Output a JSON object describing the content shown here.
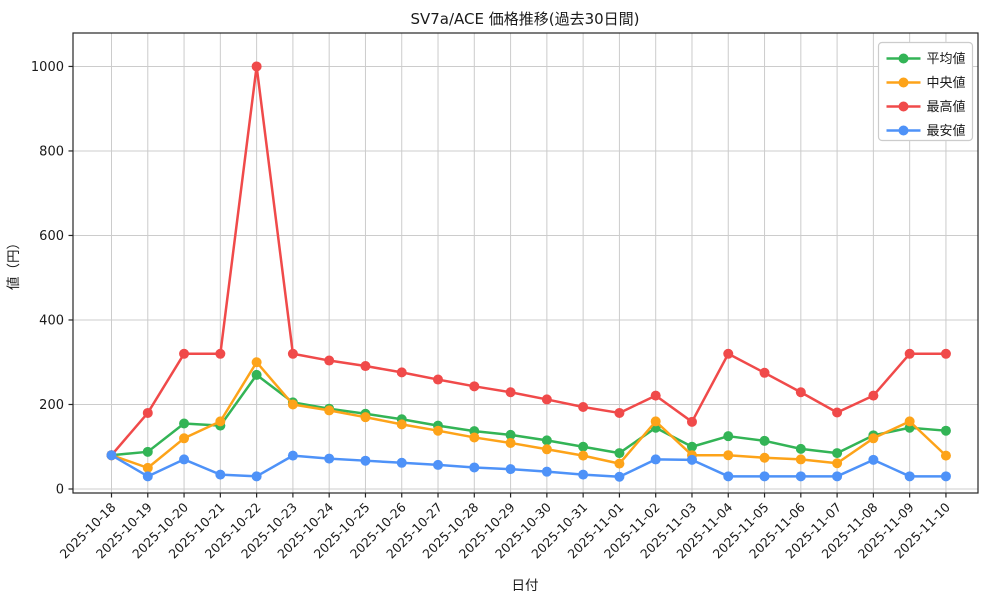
{
  "chart_data": {
    "type": "line",
    "title": "SV7a/ACE 価格推移(過去30日間)",
    "xlabel": "日付",
    "ylabel": "値（円）",
    "grid": true,
    "legend_position": "top-right",
    "ylim": [
      -10,
      1080
    ],
    "yticks": [
      0,
      200,
      400,
      600,
      800,
      1000
    ],
    "x": [
      "2025-10-18",
      "2025-10-19",
      "2025-10-20",
      "2025-10-21",
      "2025-10-22",
      "2025-10-23",
      "2025-10-24",
      "2025-10-25",
      "2025-10-26",
      "2025-10-27",
      "2025-10-28",
      "2025-10-29",
      "2025-10-30",
      "2025-10-31",
      "2025-11-01",
      "2025-11-02",
      "2025-11-03",
      "2025-11-04",
      "2025-11-05",
      "2025-11-06",
      "2025-11-07",
      "2025-11-08",
      "2025-11-09",
      "2025-11-10"
    ],
    "series": [
      {
        "name": "平均値",
        "color": "#33b456",
        "values": [
          80,
          88,
          155,
          150,
          270,
          205,
          190,
          178,
          165,
          150,
          137,
          128,
          115,
          100,
          85,
          145,
          100,
          125,
          114,
          95,
          85,
          127,
          145,
          138
        ]
      },
      {
        "name": "中央値",
        "color": "#fda319",
        "values": [
          80,
          50,
          120,
          160,
          300,
          200,
          186,
          170,
          153,
          138,
          122,
          109,
          94,
          79,
          60,
          160,
          80,
          80,
          74,
          70,
          61,
          120,
          160,
          79
        ]
      },
      {
        "name": "最高値",
        "color": "#f04a4a",
        "values": [
          80,
          180,
          320,
          320,
          1000,
          320,
          304,
          291,
          276,
          259,
          243,
          229,
          212,
          194,
          180,
          221,
          159,
          320,
          275,
          229,
          181,
          221,
          320,
          320
        ]
      },
      {
        "name": "最安値",
        "color": "#4e92f8",
        "values": [
          80,
          30,
          70,
          34,
          30,
          79,
          72,
          67,
          62,
          57,
          51,
          47,
          41,
          34,
          29,
          70,
          69,
          30,
          30,
          30,
          30,
          69,
          30,
          30
        ]
      }
    ],
    "style": {
      "grid_color": "#cccccc",
      "spine_color": "#262626",
      "text_color": "#1a1a1a",
      "background": "#ffffff"
    }
  }
}
